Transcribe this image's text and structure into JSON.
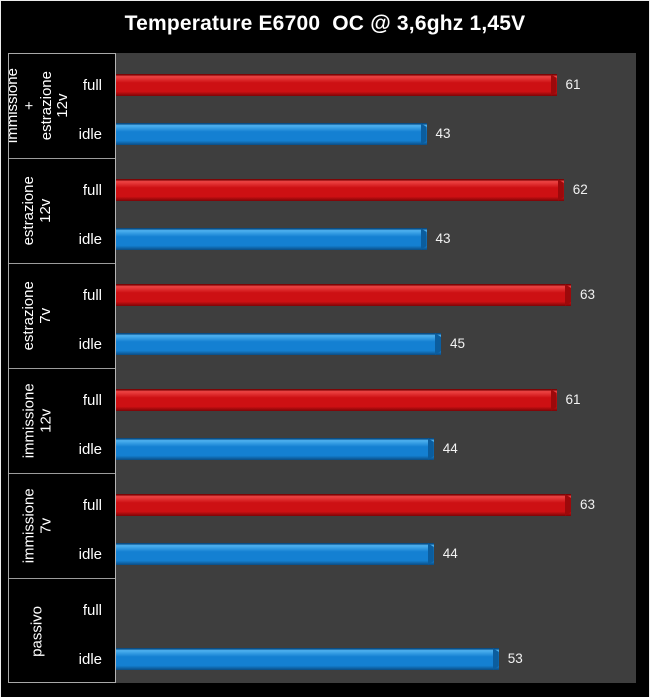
{
  "title": "Temperature E6700  OC @ 3,6ghz 1,45V",
  "colors": {
    "canvas_bg": "#000000",
    "plot_bg": "#3e3e3e",
    "text": "#ffffff",
    "separator": "#9c9c9c",
    "full_main": "#cd1013",
    "full_light": "#ee4545",
    "full_dark": "#7c0506",
    "full_end": "#9c090b",
    "idle_main": "#1480d2",
    "idle_light": "#4fb2f0",
    "idle_dark": "#0a4d85",
    "idle_end": "#0b5d9e"
  },
  "chart_data": {
    "type": "bar",
    "orientation": "horizontal",
    "title": "Temperature E6700  OC @ 3,6ghz 1,45V",
    "categories": [
      "immissione + estrazione 12v",
      "estrazione 12v",
      "estrazione 7v",
      "immissione 12v",
      "immissione 7v",
      "passivo"
    ],
    "category_display": [
      "immissione +\nestrazione 12v",
      "estrazione 12v",
      "estrazione 7v",
      "immissione 12v",
      "immissione 7v",
      "passivo"
    ],
    "series": [
      {
        "name": "full",
        "values": [
          61,
          62,
          63,
          61,
          63,
          null
        ]
      },
      {
        "name": "idle",
        "values": [
          43,
          43,
          45,
          44,
          44,
          53
        ]
      }
    ],
    "xlabel": "",
    "ylabel": "",
    "xlim": [
      0,
      72
    ],
    "grid": false,
    "legend": false,
    "value_labels": true
  }
}
